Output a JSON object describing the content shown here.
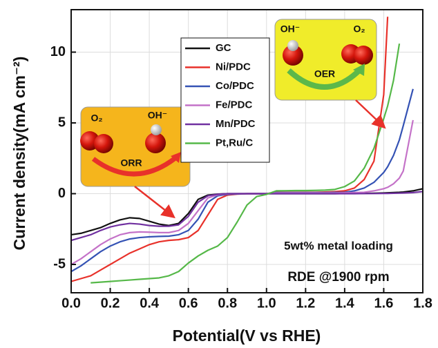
{
  "chart_data": {
    "type": "line",
    "xlabel": "Potential(V vs RHE)",
    "ylabel": "Current density(mA cm⁻²)",
    "x": [
      0,
      0.05,
      0.1,
      0.15,
      0.2,
      0.25,
      0.3,
      0.35,
      0.4,
      0.45,
      0.5,
      0.55,
      0.6,
      0.65,
      0.7,
      0.75,
      0.8,
      0.85,
      0.9,
      0.95,
      1.0,
      1.05,
      1.1,
      1.15,
      1.2,
      1.25,
      1.3,
      1.35,
      1.4,
      1.45,
      1.5,
      1.55,
      1.6,
      1.62,
      1.65,
      1.68,
      1.7,
      1.75,
      1.8
    ],
    "series": [
      {
        "name": "GC",
        "color": "#111111",
        "values": [
          -2.9,
          -2.8,
          -2.6,
          -2.4,
          -2.1,
          -1.85,
          -1.7,
          -1.75,
          -1.95,
          -2.15,
          -2.25,
          -2.1,
          -1.4,
          -0.4,
          -0.1,
          -0.03,
          0,
          0,
          0,
          0,
          0,
          0,
          0,
          0,
          0,
          0,
          0,
          0,
          0.01,
          0.01,
          0.02,
          0.03,
          0.05,
          0.06,
          0.08,
          0.1,
          0.12,
          0.2,
          0.35
        ]
      },
      {
        "name": "Ni/PDC",
        "color": "#e8312a",
        "values": [
          -6.2,
          -6.0,
          -5.8,
          -5.4,
          -5.0,
          -4.6,
          -4.2,
          -3.9,
          -3.6,
          -3.4,
          -3.3,
          -3.25,
          -3.1,
          -2.6,
          -1.5,
          -0.4,
          -0.1,
          -0.03,
          0,
          0,
          0,
          0.1,
          0.1,
          0.1,
          0.1,
          0.1,
          0.12,
          0.15,
          0.2,
          0.4,
          1.0,
          2.3,
          7.0,
          12.5,
          null,
          null,
          null,
          null,
          null
        ]
      },
      {
        "name": "Co/PDC",
        "color": "#3452b4",
        "values": [
          -5.5,
          -5.1,
          -4.6,
          -4.1,
          -3.7,
          -3.4,
          -3.2,
          -3.1,
          -3.05,
          -3.02,
          -3.0,
          -2.9,
          -2.6,
          -1.8,
          -0.6,
          -0.15,
          -0.05,
          -0.02,
          0,
          0,
          0,
          0.08,
          0.08,
          0.08,
          0.08,
          0.08,
          0.08,
          0.09,
          0.1,
          0.2,
          0.4,
          0.8,
          1.5,
          1.9,
          2.7,
          3.8,
          4.8,
          7.4,
          null
        ]
      },
      {
        "name": "Fe/PDC",
        "color": "#c472c8",
        "values": [
          -5.0,
          -4.6,
          -4.1,
          -3.6,
          -3.2,
          -2.9,
          -2.75,
          -2.7,
          -2.72,
          -2.75,
          -2.75,
          -2.6,
          -2.1,
          -1.2,
          -0.3,
          -0.08,
          -0.02,
          0,
          0,
          0,
          0,
          0.05,
          0.05,
          0.05,
          0.05,
          0.05,
          0.05,
          0.05,
          0.06,
          0.08,
          0.1,
          0.2,
          0.35,
          0.45,
          0.7,
          1.1,
          1.6,
          5.2,
          null
        ]
      },
      {
        "name": "Mn/PDC",
        "color": "#7030a0",
        "values": [
          -3.3,
          -3.1,
          -2.9,
          -2.6,
          -2.35,
          -2.2,
          -2.1,
          -2.15,
          -2.25,
          -2.3,
          -2.3,
          -2.2,
          -1.6,
          -0.6,
          -0.15,
          -0.04,
          0,
          0,
          0,
          0,
          0,
          0,
          0,
          0,
          0,
          0,
          0,
          0,
          0,
          0,
          0.01,
          0.01,
          0.02,
          0.02,
          0.03,
          0.04,
          0.05,
          0.08,
          0.15
        ]
      },
      {
        "name": "Pt,Ru/C",
        "color": "#55b848",
        "values": [
          null,
          null,
          -6.3,
          -6.25,
          -6.2,
          -6.15,
          -6.1,
          -6.05,
          -6.0,
          -5.95,
          -5.8,
          -5.5,
          -4.9,
          -4.4,
          -4.0,
          -3.7,
          -3.1,
          -2.0,
          -0.8,
          -0.2,
          -0.05,
          0.2,
          0.21,
          0.22,
          0.22,
          0.23,
          0.25,
          0.3,
          0.5,
          0.9,
          1.8,
          3.2,
          5.3,
          6.2,
          8.0,
          10.6,
          null,
          null,
          null
        ]
      }
    ],
    "xlim": [
      0,
      1.8
    ],
    "ylim": [
      -7,
      13
    ],
    "xticks": [
      {
        "value": 0,
        "label": "0.0"
      },
      0.2,
      0.4,
      0.6,
      0.8,
      {
        "value": 1,
        "label": "1.0"
      },
      1.2,
      1.4,
      1.6,
      1.8
    ],
    "yticks": [
      -5,
      0,
      5,
      10
    ],
    "grid": true,
    "annotations": [
      "5wt% metal loading",
      "RDE @1900 rpm"
    ],
    "orr_inset": {
      "reactant": "O₂",
      "product": "OH⁻",
      "label": "ORR"
    },
    "oer_inset": {
      "reactant": "OH⁻",
      "product": "O₂",
      "label": "OER"
    }
  }
}
